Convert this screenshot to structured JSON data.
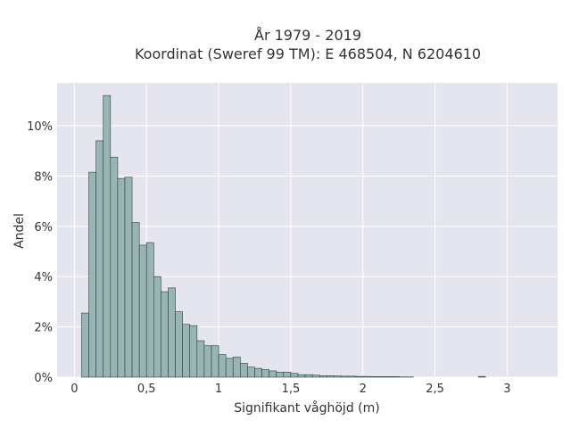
{
  "chart_data": {
    "type": "bar",
    "title_line1": "År 1979 - 2019",
    "title_line2": "Koordinat (Sweref 99 TM): E 468504, N 6204610",
    "xlabel": "Signifikant våghöjd (m)",
    "ylabel": "Andel",
    "xlim": [
      -0.12,
      3.35
    ],
    "ylim": [
      0,
      11.7
    ],
    "bin_width": 0.05,
    "x_ticks": [
      {
        "value": 0,
        "label": "0"
      },
      {
        "value": 0.5,
        "label": "0,5"
      },
      {
        "value": 1,
        "label": "1"
      },
      {
        "value": 1.5,
        "label": "1,5"
      },
      {
        "value": 2,
        "label": "2"
      },
      {
        "value": 2.5,
        "label": "2,5"
      },
      {
        "value": 3,
        "label": "3"
      }
    ],
    "y_ticks": [
      {
        "value": 0,
        "label": "0%"
      },
      {
        "value": 2,
        "label": "2%"
      },
      {
        "value": 4,
        "label": "4%"
      },
      {
        "value": 6,
        "label": "6%"
      },
      {
        "value": 8,
        "label": "8%"
      },
      {
        "value": 10,
        "label": "10%"
      }
    ],
    "bin_starts": [
      0.05,
      0.1,
      0.15,
      0.2,
      0.25,
      0.3,
      0.35,
      0.4,
      0.45,
      0.5,
      0.55,
      0.6,
      0.65,
      0.7,
      0.75,
      0.8,
      0.85,
      0.9,
      0.95,
      1.0,
      1.05,
      1.1,
      1.15,
      1.2,
      1.25,
      1.3,
      1.35,
      1.4,
      1.45,
      1.5,
      1.55,
      1.6,
      1.65,
      1.7,
      1.75,
      1.8,
      1.85,
      1.9,
      1.95,
      2.0,
      2.05,
      2.1,
      2.15,
      2.2,
      2.25,
      2.3,
      2.35,
      2.4,
      2.45,
      2.5,
      2.55,
      2.6,
      2.65,
      2.7,
      2.75,
      2.8,
      2.85,
      2.9,
      2.95,
      3.0,
      3.05
    ],
    "values": [
      2.55,
      8.15,
      9.4,
      11.2,
      8.75,
      7.9,
      7.95,
      6.15,
      5.25,
      5.35,
      4.0,
      3.4,
      3.55,
      2.6,
      2.1,
      2.05,
      1.45,
      1.25,
      1.25,
      0.9,
      0.75,
      0.8,
      0.55,
      0.4,
      0.35,
      0.3,
      0.25,
      0.2,
      0.2,
      0.15,
      0.1,
      0.1,
      0.08,
      0.06,
      0.06,
      0.05,
      0.04,
      0.04,
      0.03,
      0.03,
      0.02,
      0.02,
      0.02,
      0.02,
      0.01,
      0.01,
      0.0,
      0.0,
      0.0,
      0.0,
      0.0,
      0.0,
      0.0,
      0.0,
      0.0,
      0.03,
      0.0,
      0.0,
      0.0,
      0.0,
      0.0
    ],
    "bar_color": "#98b4b4",
    "bar_edge_color": "#2f3f3f",
    "plot_bg": "#e5e5ef",
    "grid_color": "#ffffff",
    "grid": true
  }
}
